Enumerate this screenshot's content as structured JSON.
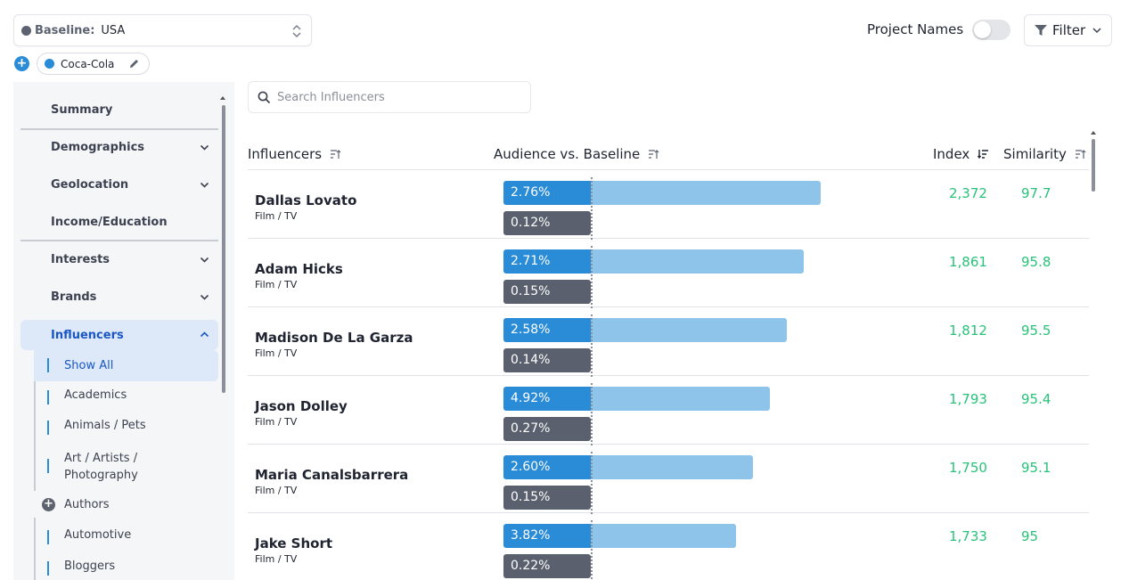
{
  "baseline": {
    "label": "Baseline:",
    "value": "USA"
  },
  "audience_chip": {
    "label": "Coca-Cola"
  },
  "top_controls": {
    "project_names_label": "Project Names",
    "project_names_on": false,
    "filter_label": "Filter"
  },
  "sidebar": {
    "items": [
      {
        "label": "Summary"
      },
      {
        "label": "Demographics"
      },
      {
        "label": "Geolocation"
      },
      {
        "label": "Income/Education"
      },
      {
        "label": "Interests"
      },
      {
        "label": "Brands"
      },
      {
        "label": "Influencers"
      }
    ],
    "sub_items": [
      {
        "label": "Show All"
      },
      {
        "label": "Academics"
      },
      {
        "label": "Animals / Pets"
      },
      {
        "label": "Art / Artists / Photography"
      },
      {
        "label": "Authors"
      },
      {
        "label": "Automotive"
      },
      {
        "label": "Bloggers"
      }
    ]
  },
  "search": {
    "placeholder": "Search Influencers"
  },
  "table": {
    "headers": {
      "influencers": "Influencers",
      "audience": "Audience vs. Baseline",
      "index": "Index",
      "similarity": "Similarity"
    },
    "rows": [
      {
        "name": "Dallas Lovato",
        "category": "Film / TV",
        "audience_pct": "2.76%",
        "baseline_pct": "0.12%",
        "bar_fraction": 0.68,
        "index": "2,372",
        "similarity": "97.7"
      },
      {
        "name": "Adam Hicks",
        "category": "Film / TV",
        "audience_pct": "2.71%",
        "baseline_pct": "0.15%",
        "bar_fraction": 0.63,
        "index": "1,861",
        "similarity": "95.8"
      },
      {
        "name": "Madison De La Garza",
        "category": "Film / TV",
        "audience_pct": "2.58%",
        "baseline_pct": "0.14%",
        "bar_fraction": 0.58,
        "index": "1,812",
        "similarity": "95.5"
      },
      {
        "name": "Jason Dolley",
        "category": "Film / TV",
        "audience_pct": "4.92%",
        "baseline_pct": "0.27%",
        "bar_fraction": 0.53,
        "index": "1,793",
        "similarity": "95.4"
      },
      {
        "name": "Maria Canalsbarrera",
        "category": "Film / TV",
        "audience_pct": "2.60%",
        "baseline_pct": "0.15%",
        "bar_fraction": 0.48,
        "index": "1,750",
        "similarity": "95.1"
      },
      {
        "name": "Jake Short",
        "category": "Film / TV",
        "audience_pct": "3.82%",
        "baseline_pct": "0.22%",
        "bar_fraction": 0.43,
        "index": "1,733",
        "similarity": "95"
      }
    ]
  },
  "colors": {
    "accent": "#2a8bd6",
    "bar_light": "#8ec3ea",
    "baseline_gray": "#5a606d",
    "positive": "#28c27a",
    "active_bg": "#dde9f9"
  },
  "icons": [
    "updown-icon",
    "plus-icon",
    "pencil-icon",
    "funnel-icon",
    "chevron-down-icon",
    "search-icon",
    "sort-icon"
  ]
}
